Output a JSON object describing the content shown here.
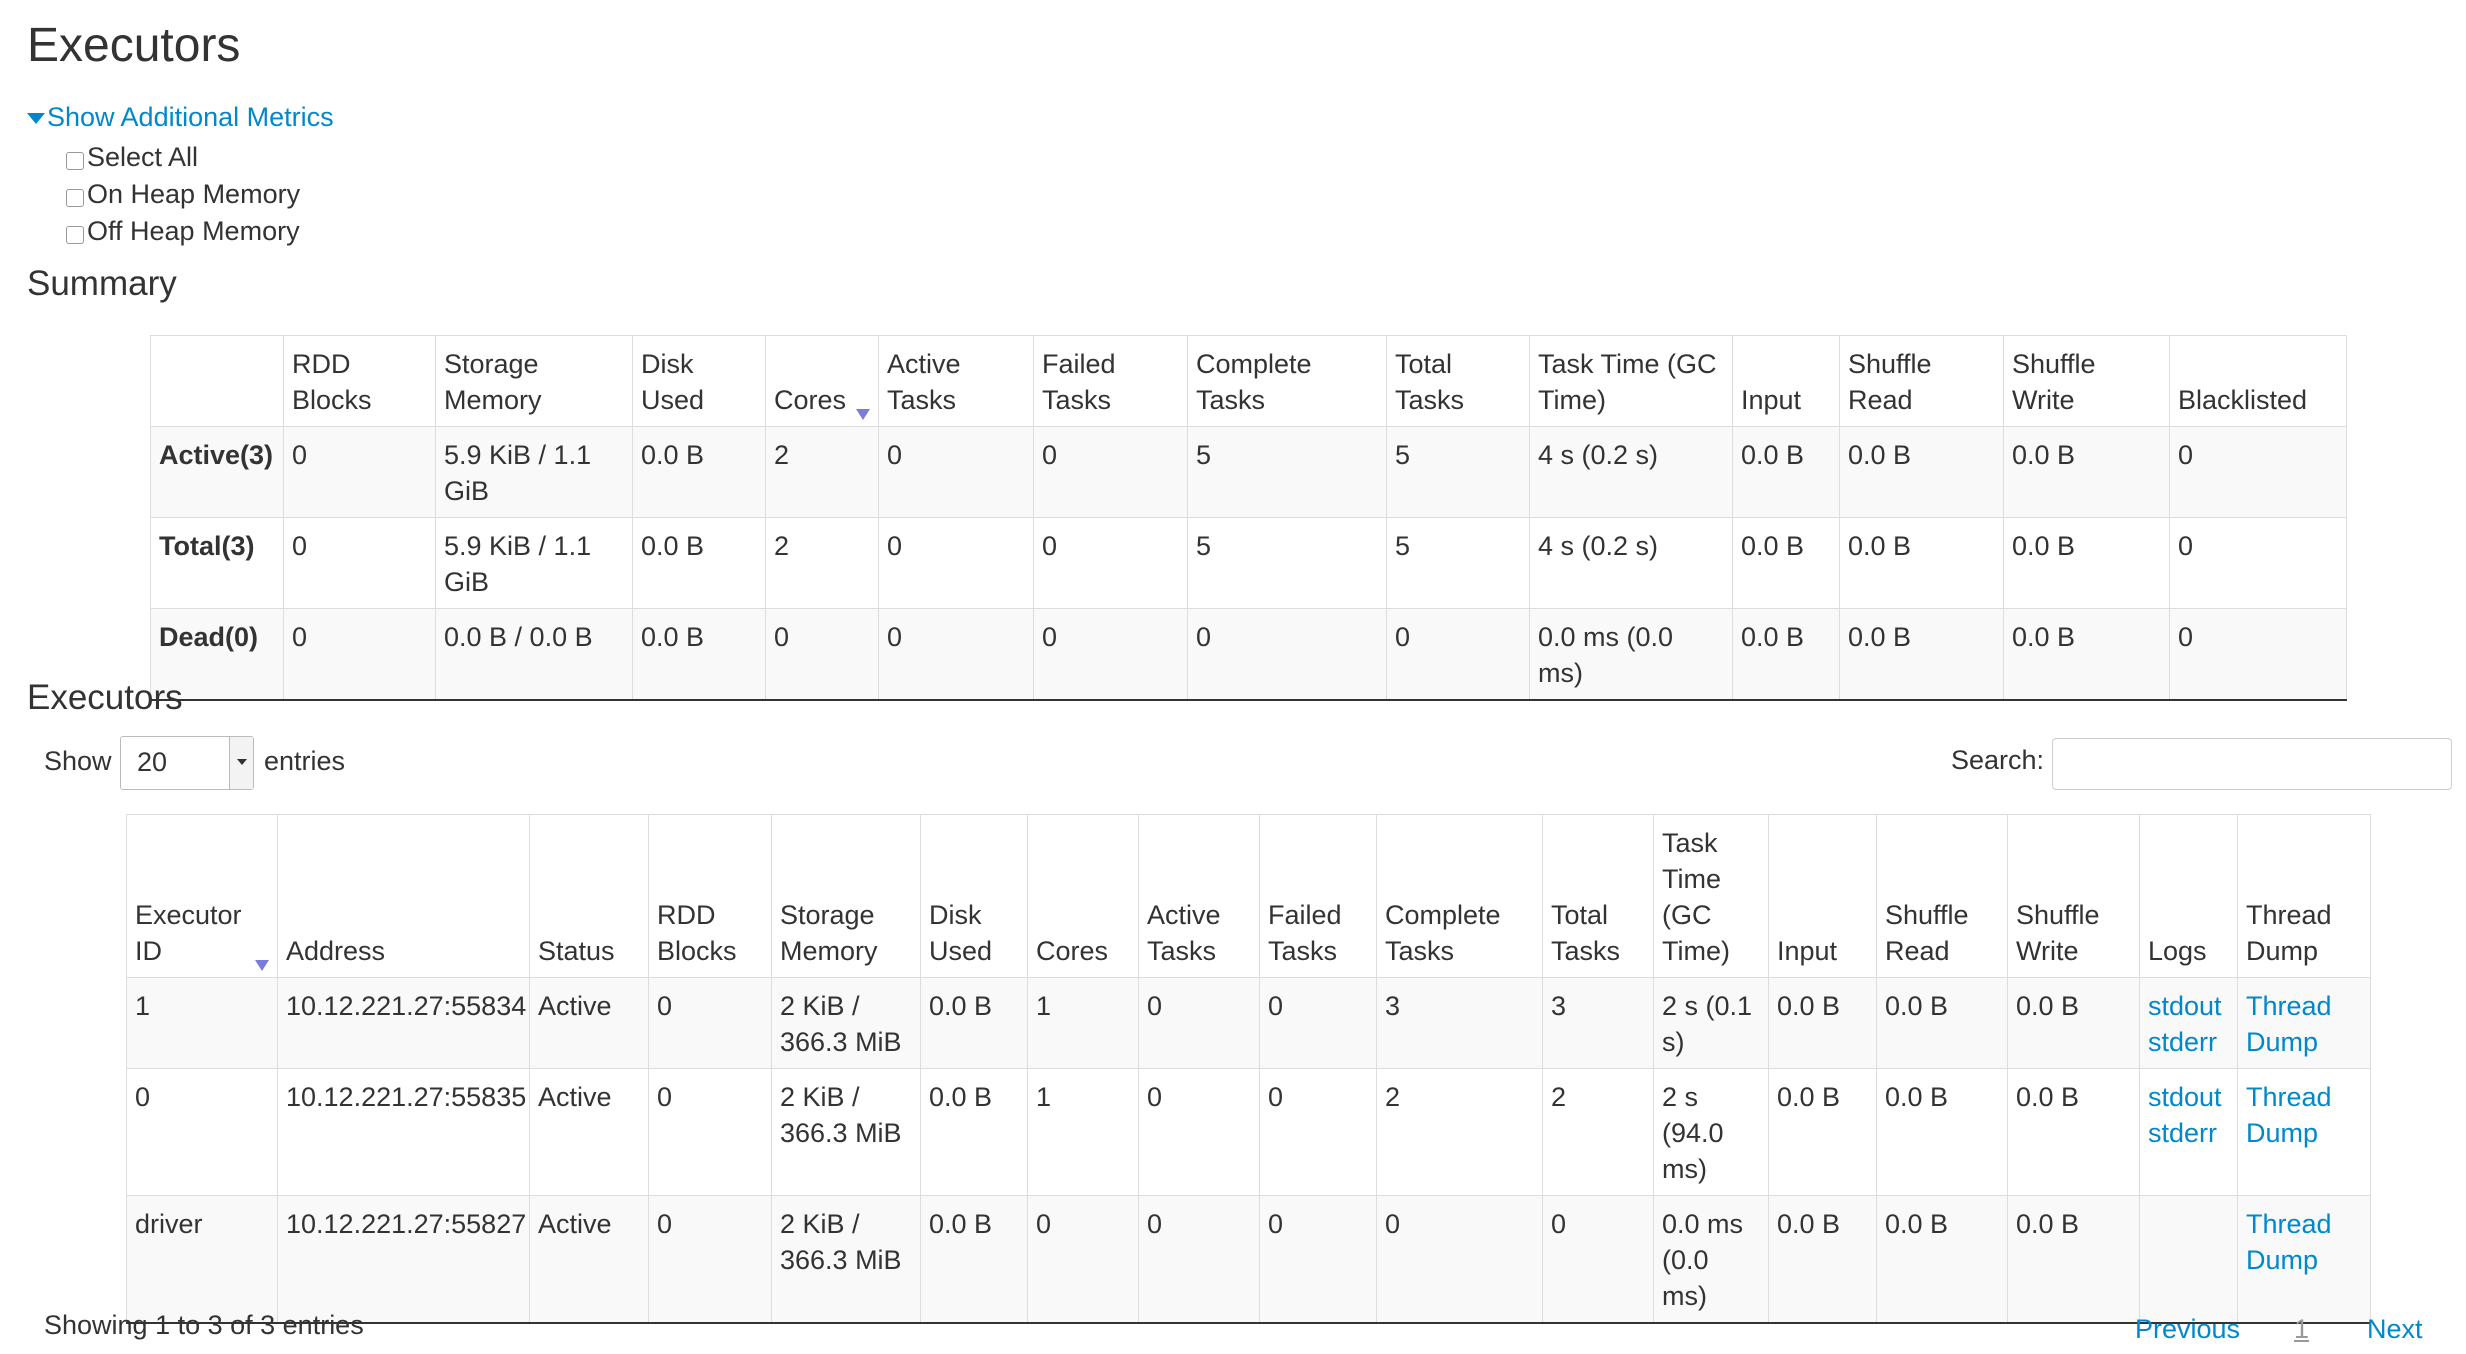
{
  "page_title": "Executors",
  "additional_metrics": {
    "toggle_label": "Show Additional Metrics",
    "options": [
      {
        "label": "Select All",
        "checked": false
      },
      {
        "label": "On Heap Memory",
        "checked": false
      },
      {
        "label": "Off Heap Memory",
        "checked": false
      }
    ]
  },
  "summary": {
    "heading": "Summary",
    "columns": [
      "",
      "RDD Blocks",
      "Storage Memory",
      "Disk Used",
      "Cores",
      "Active Tasks",
      "Failed Tasks",
      "Complete Tasks",
      "Total Tasks",
      "Task Time (GC Time)",
      "Input",
      "Shuffle Read",
      "Shuffle Write",
      "Blacklisted"
    ],
    "sorted_column": "Cores",
    "rows": [
      [
        "Active(3)",
        "0",
        "5.9 KiB / 1.1 GiB",
        "0.0 B",
        "2",
        "0",
        "0",
        "5",
        "5",
        "4 s (0.2 s)",
        "0.0 B",
        "0.0 B",
        "0.0 B",
        "0"
      ],
      [
        "Total(3)",
        "0",
        "5.9 KiB / 1.1 GiB",
        "0.0 B",
        "2",
        "0",
        "0",
        "5",
        "5",
        "4 s (0.2 s)",
        "0.0 B",
        "0.0 B",
        "0.0 B",
        "0"
      ],
      [
        "Dead(0)",
        "0",
        "0.0 B / 0.0 B",
        "0.0 B",
        "0",
        "0",
        "0",
        "0",
        "0",
        "0.0 ms (0.0 ms)",
        "0.0 B",
        "0.0 B",
        "0.0 B",
        "0"
      ]
    ]
  },
  "executors": {
    "heading": "Executors",
    "show_label": "Show",
    "page_size": "20",
    "entries_label": "entries",
    "search_label": "Search:",
    "search_value": "",
    "columns": [
      "Executor ID",
      "Address",
      "Status",
      "RDD Blocks",
      "Storage Memory",
      "Disk Used",
      "Cores",
      "Active Tasks",
      "Failed Tasks",
      "Complete Tasks",
      "Total Tasks",
      "Task Time (GC Time)",
      "Input",
      "Shuffle Read",
      "Shuffle Write",
      "Logs",
      "Thread Dump"
    ],
    "sorted_column": "Executor ID",
    "rows": [
      {
        "cells": [
          "1",
          "10.12.221.27:55834",
          "Active",
          "0",
          "2 KiB / 366.3 MiB",
          "0.0 B",
          "1",
          "0",
          "0",
          "3",
          "3",
          "2 s (0.1 s)",
          "0.0 B",
          "0.0 B",
          "0.0 B"
        ],
        "logs": [
          "stdout",
          "stderr"
        ],
        "thread_dump": "Thread Dump"
      },
      {
        "cells": [
          "0",
          "10.12.221.27:55835",
          "Active",
          "0",
          "2 KiB / 366.3 MiB",
          "0.0 B",
          "1",
          "0",
          "0",
          "2",
          "2",
          "2 s (94.0 ms)",
          "0.0 B",
          "0.0 B",
          "0.0 B"
        ],
        "logs": [
          "stdout",
          "stderr"
        ],
        "thread_dump": "Thread Dump"
      },
      {
        "cells": [
          "driver",
          "10.12.221.27:55827",
          "Active",
          "0",
          "2 KiB / 366.3 MiB",
          "0.0 B",
          "0",
          "0",
          "0",
          "0",
          "0",
          "0.0 ms (0.0 ms)",
          "0.0 B",
          "0.0 B",
          "0.0 B"
        ],
        "logs": [],
        "thread_dump": "Thread Dump"
      }
    ],
    "info": "Showing 1 to 3 of 3 entries",
    "pagination": {
      "previous": "Previous",
      "current": "1",
      "next": "Next"
    }
  },
  "colors": {
    "link": "#0088cc",
    "sort_arrow": "#7b7bdb",
    "stripe": "#f9f9f9"
  }
}
